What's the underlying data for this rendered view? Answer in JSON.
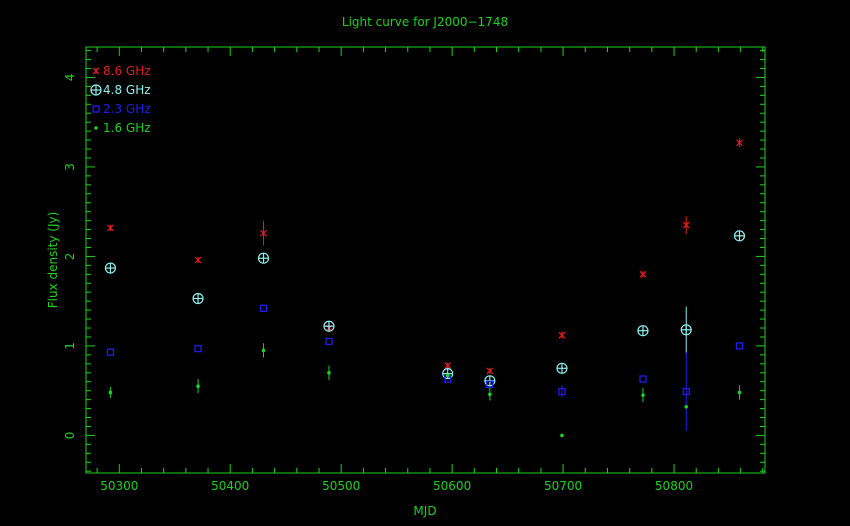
{
  "chart_data": {
    "type": "scatter",
    "title": "Light curve for J2000−1748",
    "xlabel": "MJD",
    "ylabel": "Flux density (Jy)",
    "xlim": [
      50270,
      50882
    ],
    "ylim": [
      -0.42,
      4.34
    ],
    "xticks": [
      50300,
      50400,
      50500,
      50600,
      50700,
      50800
    ],
    "yticks": [
      0,
      1,
      2,
      3,
      4
    ],
    "grid": false,
    "legend_position": "top-left",
    "colors": {
      "axes": "#1ed21e",
      "title": "#1ed21e"
    },
    "series": [
      {
        "name": "8.6 GHz",
        "marker": "asterisk",
        "color": "#e01e1e",
        "x": [
          50292,
          50371,
          50430,
          50489,
          50596,
          50634,
          50699,
          50772,
          50811,
          50859
        ],
        "y": [
          2.32,
          1.96,
          2.26,
          1.2,
          0.78,
          0.72,
          1.12,
          1.8,
          2.35,
          3.27
        ],
        "err": [
          0.0,
          0.0,
          0.14,
          0.0,
          0.0,
          0.0,
          0.04,
          0.0,
          0.1,
          0.05
        ]
      },
      {
        "name": "4.8 GHz",
        "marker": "circle-cross",
        "color": "#8ef0f0",
        "x": [
          50292,
          50371,
          50430,
          50489,
          50596,
          50634,
          50699,
          50772,
          50811,
          50859
        ],
        "y": [
          1.87,
          1.53,
          1.98,
          1.22,
          0.69,
          0.61,
          0.75,
          1.17,
          1.18,
          2.23
        ],
        "err": [
          0.0,
          0.0,
          0.0,
          0.0,
          0.0,
          0.0,
          0.0,
          0.0,
          0.26,
          0.0
        ]
      },
      {
        "name": "2.3 GHz",
        "marker": "square",
        "color": "#1e1ef0",
        "x": [
          50292,
          50371,
          50430,
          50489,
          50596,
          50634,
          50699,
          50772,
          50811,
          50859
        ],
        "y": [
          0.93,
          0.97,
          1.42,
          1.05,
          0.63,
          0.57,
          0.49,
          0.63,
          0.49,
          1.0
        ],
        "err": [
          0.0,
          0.0,
          0.0,
          0.0,
          0.0,
          0.0,
          0.07,
          0.0,
          0.44,
          0.0
        ]
      },
      {
        "name": "1.6 GHz",
        "marker": "dot",
        "color": "#1ed21e",
        "x": [
          50292,
          50371,
          50430,
          50489,
          50596,
          50634,
          50699,
          50772,
          50811,
          50859
        ],
        "y": [
          0.48,
          0.55,
          0.95,
          0.7,
          0.67,
          0.46,
          0.0,
          0.45,
          0.32,
          0.48
        ],
        "err": [
          0.06,
          0.08,
          0.08,
          0.08,
          0.0,
          0.07,
          0.0,
          0.08,
          0.0,
          0.08
        ]
      }
    ]
  }
}
